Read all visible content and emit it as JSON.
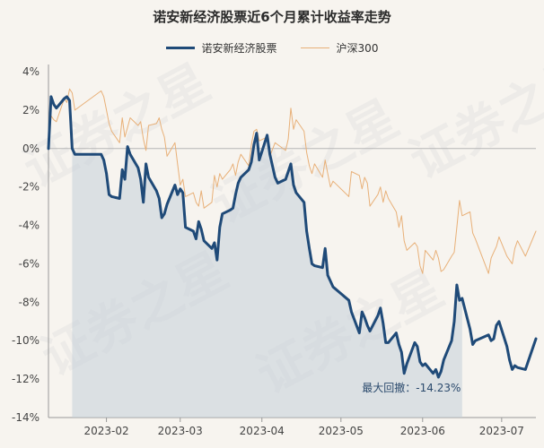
{
  "chart_data": {
    "type": "line",
    "title": "诺安新经济股票近6个月累计收益率走势",
    "y_unit": "%",
    "ylim": [
      -14,
      4
    ],
    "y_ticks": [
      "4%",
      "2%",
      "0%",
      "-2%",
      "-4%",
      "-6%",
      "-8%",
      "-10%",
      "-12%",
      "-14%"
    ],
    "x_ticks": [
      "2023-02",
      "2023-03",
      "2023-04",
      "2023-05",
      "2023-06",
      "2023-07"
    ],
    "x_range": [
      "2023-01-10",
      "2023-07-14"
    ],
    "legend_placement": "top-center",
    "grid": "horizontal zero line only",
    "annotation": "最大回撤：-14.23%",
    "watermark": "证券之星",
    "drawdown_shade": {
      "from": "2023-01-19",
      "to": "2023-06-16"
    },
    "series": [
      {
        "name": "诺安新经济股票",
        "color": "#1f4a78",
        "points": [
          [
            "2023-01-10",
            0.0
          ],
          [
            "2023-01-11",
            2.7
          ],
          [
            "2023-01-12",
            2.3
          ],
          [
            "2023-01-13",
            2.1
          ],
          [
            "2023-01-16",
            2.6
          ],
          [
            "2023-01-17",
            2.7
          ],
          [
            "2023-01-18",
            2.5
          ],
          [
            "2023-01-19",
            0.0
          ],
          [
            "2023-01-20",
            -0.3
          ],
          [
            "2023-01-30",
            -0.3
          ],
          [
            "2023-01-31",
            -0.6
          ],
          [
            "2023-02-01",
            -1.3
          ],
          [
            "2023-02-02",
            -2.4
          ],
          [
            "2023-02-03",
            -2.5
          ],
          [
            "2023-02-06",
            -2.6
          ],
          [
            "2023-02-07",
            -1.1
          ],
          [
            "2023-02-08",
            -1.6
          ],
          [
            "2023-02-09",
            0.1
          ],
          [
            "2023-02-10",
            -0.3
          ],
          [
            "2023-02-13",
            -1.0
          ],
          [
            "2023-02-14",
            -1.6
          ],
          [
            "2023-02-15",
            -2.8
          ],
          [
            "2023-02-16",
            -0.8
          ],
          [
            "2023-02-17",
            -1.5
          ],
          [
            "2023-02-20",
            -2.2
          ],
          [
            "2023-02-21",
            -2.6
          ],
          [
            "2023-02-22",
            -3.6
          ],
          [
            "2023-02-23",
            -3.4
          ],
          [
            "2023-02-24",
            -2.9
          ],
          [
            "2023-02-27",
            -1.9
          ],
          [
            "2023-02-28",
            -2.4
          ],
          [
            "2023-03-01",
            -2.1
          ],
          [
            "2023-03-02",
            -2.3
          ],
          [
            "2023-03-03",
            -4.1
          ],
          [
            "2023-03-06",
            -4.3
          ],
          [
            "2023-03-07",
            -4.7
          ],
          [
            "2023-03-08",
            -3.8
          ],
          [
            "2023-03-09",
            -4.2
          ],
          [
            "2023-03-10",
            -4.8
          ],
          [
            "2023-03-13",
            -5.2
          ],
          [
            "2023-03-14",
            -4.9
          ],
          [
            "2023-03-15",
            -5.8
          ],
          [
            "2023-03-16",
            -4.1
          ],
          [
            "2023-03-17",
            -3.4
          ],
          [
            "2023-03-20",
            -3.2
          ],
          [
            "2023-03-21",
            -3.1
          ],
          [
            "2023-03-22",
            -2.4
          ],
          [
            "2023-03-23",
            -1.8
          ],
          [
            "2023-03-24",
            -1.5
          ],
          [
            "2023-03-27",
            -1.1
          ],
          [
            "2023-03-28",
            -0.7
          ],
          [
            "2023-03-29",
            0.2
          ],
          [
            "2023-03-30",
            0.8
          ],
          [
            "2023-03-31",
            -0.6
          ],
          [
            "2023-04-03",
            0.7
          ],
          [
            "2023-04-04",
            -0.3
          ],
          [
            "2023-04-06",
            -1.5
          ],
          [
            "2023-04-07",
            -1.8
          ],
          [
            "2023-04-10",
            -1.6
          ],
          [
            "2023-04-11",
            -1.2
          ],
          [
            "2023-04-12",
            -0.8
          ],
          [
            "2023-04-13",
            -1.9
          ],
          [
            "2023-04-14",
            -2.3
          ],
          [
            "2023-04-17",
            -2.8
          ],
          [
            "2023-04-18",
            -4.3
          ],
          [
            "2023-04-19",
            -5.2
          ],
          [
            "2023-04-20",
            -6.0
          ],
          [
            "2023-04-21",
            -6.1
          ],
          [
            "2023-04-24",
            -6.2
          ],
          [
            "2023-04-25",
            -5.2
          ],
          [
            "2023-04-26",
            -6.6
          ],
          [
            "2023-04-27",
            -6.9
          ],
          [
            "2023-04-28",
            -7.2
          ],
          [
            "2023-05-04",
            -7.9
          ],
          [
            "2023-05-05",
            -8.5
          ],
          [
            "2023-05-08",
            -9.6
          ],
          [
            "2023-05-09",
            -8.5
          ],
          [
            "2023-05-10",
            -8.8
          ],
          [
            "2023-05-11",
            -9.2
          ],
          [
            "2023-05-12",
            -9.5
          ],
          [
            "2023-05-15",
            -8.7
          ],
          [
            "2023-05-16",
            -8.3
          ],
          [
            "2023-05-17",
            -9.1
          ],
          [
            "2023-05-18",
            -10.1
          ],
          [
            "2023-05-19",
            -10.1
          ],
          [
            "2023-05-22",
            -9.6
          ],
          [
            "2023-05-23",
            -10.2
          ],
          [
            "2023-05-24",
            -10.6
          ],
          [
            "2023-05-25",
            -11.7
          ],
          [
            "2023-05-26",
            -11.2
          ],
          [
            "2023-05-29",
            -10.1
          ],
          [
            "2023-05-30",
            -10.3
          ],
          [
            "2023-05-31",
            -11.1
          ],
          [
            "2023-06-01",
            -11.3
          ],
          [
            "2023-06-02",
            -11.2
          ],
          [
            "2023-06-05",
            -11.7
          ],
          [
            "2023-06-06",
            -11.5
          ],
          [
            "2023-06-07",
            -11.9
          ],
          [
            "2023-06-08",
            -11.6
          ],
          [
            "2023-06-09",
            -11.0
          ],
          [
            "2023-06-12",
            -10.0
          ],
          [
            "2023-06-13",
            -9.0
          ],
          [
            "2023-06-14",
            -7.1
          ],
          [
            "2023-06-15",
            -7.9
          ],
          [
            "2023-06-16",
            -7.8
          ],
          [
            "2023-06-19",
            -9.4
          ],
          [
            "2023-06-20",
            -10.2
          ],
          [
            "2023-06-21",
            -10.0
          ],
          [
            "2023-06-26",
            -9.7
          ],
          [
            "2023-06-27",
            -10.0
          ],
          [
            "2023-06-28",
            -9.9
          ],
          [
            "2023-06-29",
            -9.2
          ],
          [
            "2023-06-30",
            -9.0
          ],
          [
            "2023-07-03",
            -10.3
          ],
          [
            "2023-07-04",
            -11.0
          ],
          [
            "2023-07-05",
            -11.5
          ],
          [
            "2023-07-06",
            -11.3
          ],
          [
            "2023-07-07",
            -11.4
          ],
          [
            "2023-07-10",
            -11.5
          ],
          [
            "2023-07-14",
            -9.9
          ]
        ]
      },
      {
        "name": "沪深300",
        "color": "#e8b078",
        "points": [
          [
            "2023-01-10",
            0.0
          ],
          [
            "2023-01-11",
            1.7
          ],
          [
            "2023-01-12",
            1.5
          ],
          [
            "2023-01-13",
            1.4
          ],
          [
            "2023-01-16",
            2.6
          ],
          [
            "2023-01-17",
            2.4
          ],
          [
            "2023-01-18",
            3.1
          ],
          [
            "2023-01-19",
            2.9
          ],
          [
            "2023-01-20",
            2.0
          ],
          [
            "2023-01-30",
            3.0
          ],
          [
            "2023-01-31",
            2.7
          ],
          [
            "2023-02-01",
            2.0
          ],
          [
            "2023-02-02",
            1.3
          ],
          [
            "2023-02-03",
            0.9
          ],
          [
            "2023-02-06",
            0.3
          ],
          [
            "2023-02-07",
            1.6
          ],
          [
            "2023-02-08",
            0.6
          ],
          [
            "2023-02-09",
            1.1
          ],
          [
            "2023-02-10",
            1.6
          ],
          [
            "2023-02-13",
            1.2
          ],
          [
            "2023-02-14",
            1.4
          ],
          [
            "2023-02-15",
            0.5
          ],
          [
            "2023-02-16",
            -0.1
          ],
          [
            "2023-02-17",
            1.2
          ],
          [
            "2023-02-20",
            1.3
          ],
          [
            "2023-02-21",
            1.6
          ],
          [
            "2023-02-22",
            1.0
          ],
          [
            "2023-02-23",
            0.6
          ],
          [
            "2023-02-24",
            -0.4
          ],
          [
            "2023-02-27",
            0.3
          ],
          [
            "2023-02-28",
            -0.8
          ],
          [
            "2023-03-01",
            -1.9
          ],
          [
            "2023-03-02",
            -1.6
          ],
          [
            "2023-03-03",
            -2.5
          ],
          [
            "2023-03-06",
            -2.3
          ],
          [
            "2023-03-07",
            -2.8
          ],
          [
            "2023-03-08",
            -3.0
          ],
          [
            "2023-03-09",
            -2.2
          ],
          [
            "2023-03-10",
            -3.1
          ],
          [
            "2023-03-13",
            -2.8
          ],
          [
            "2023-03-14",
            -1.4
          ],
          [
            "2023-03-15",
            -2.0
          ],
          [
            "2023-03-16",
            -1.3
          ],
          [
            "2023-03-17",
            -1.6
          ],
          [
            "2023-03-20",
            -1.1
          ],
          [
            "2023-03-21",
            -0.8
          ],
          [
            "2023-03-22",
            -1.4
          ],
          [
            "2023-03-23",
            -0.7
          ],
          [
            "2023-03-24",
            -0.3
          ],
          [
            "2023-03-27",
            -0.9
          ],
          [
            "2023-03-28",
            0.2
          ],
          [
            "2023-03-29",
            0.9
          ],
          [
            "2023-03-30",
            1.0
          ],
          [
            "2023-03-31",
            0.4
          ],
          [
            "2023-04-03",
            0.6
          ],
          [
            "2023-04-04",
            -0.4
          ],
          [
            "2023-04-06",
            0.3
          ],
          [
            "2023-04-07",
            0.2
          ],
          [
            "2023-04-10",
            -0.1
          ],
          [
            "2023-04-11",
            0.5
          ],
          [
            "2023-04-12",
            2.1
          ],
          [
            "2023-04-13",
            1.0
          ],
          [
            "2023-04-14",
            1.5
          ],
          [
            "2023-04-17",
            0.9
          ],
          [
            "2023-04-18",
            -0.2
          ],
          [
            "2023-04-19",
            -0.9
          ],
          [
            "2023-04-20",
            -1.3
          ],
          [
            "2023-04-21",
            -0.8
          ],
          [
            "2023-04-24",
            -1.5
          ],
          [
            "2023-04-25",
            -0.6
          ],
          [
            "2023-04-26",
            -1.3
          ],
          [
            "2023-04-27",
            -2.0
          ],
          [
            "2023-04-28",
            -1.7
          ],
          [
            "2023-05-04",
            -2.5
          ],
          [
            "2023-05-05",
            -1.2
          ],
          [
            "2023-05-08",
            -1.4
          ],
          [
            "2023-05-09",
            -2.1
          ],
          [
            "2023-05-10",
            -1.5
          ],
          [
            "2023-05-11",
            -1.8
          ],
          [
            "2023-05-12",
            -3.0
          ],
          [
            "2023-05-15",
            -2.4
          ],
          [
            "2023-05-16",
            -2.0
          ],
          [
            "2023-05-17",
            -2.8
          ],
          [
            "2023-05-18",
            -2.2
          ],
          [
            "2023-05-19",
            -2.6
          ],
          [
            "2023-05-22",
            -3.3
          ],
          [
            "2023-05-23",
            -4.1
          ],
          [
            "2023-05-24",
            -3.5
          ],
          [
            "2023-05-25",
            -4.8
          ],
          [
            "2023-05-26",
            -5.3
          ],
          [
            "2023-05-29",
            -4.9
          ],
          [
            "2023-05-30",
            -5.1
          ],
          [
            "2023-05-31",
            -6.1
          ],
          [
            "2023-06-01",
            -6.5
          ],
          [
            "2023-06-02",
            -5.3
          ],
          [
            "2023-06-05",
            -5.8
          ],
          [
            "2023-06-06",
            -5.3
          ],
          [
            "2023-06-07",
            -5.7
          ],
          [
            "2023-06-08",
            -6.4
          ],
          [
            "2023-06-09",
            -6.3
          ],
          [
            "2023-06-12",
            -5.6
          ],
          [
            "2023-06-13",
            -5.4
          ],
          [
            "2023-06-14",
            -4.1
          ],
          [
            "2023-06-15",
            -2.7
          ],
          [
            "2023-06-16",
            -3.5
          ],
          [
            "2023-06-19",
            -3.3
          ],
          [
            "2023-06-20",
            -4.4
          ],
          [
            "2023-06-21",
            -4.7
          ],
          [
            "2023-06-26",
            -6.5
          ],
          [
            "2023-06-27",
            -5.7
          ],
          [
            "2023-06-28",
            -5.4
          ],
          [
            "2023-06-29",
            -5.1
          ],
          [
            "2023-06-30",
            -4.6
          ],
          [
            "2023-07-03",
            -5.6
          ],
          [
            "2023-07-04",
            -5.8
          ],
          [
            "2023-07-05",
            -6.0
          ],
          [
            "2023-07-06",
            -5.2
          ],
          [
            "2023-07-07",
            -4.8
          ],
          [
            "2023-07-10",
            -5.6
          ],
          [
            "2023-07-14",
            -4.3
          ]
        ]
      }
    ]
  }
}
